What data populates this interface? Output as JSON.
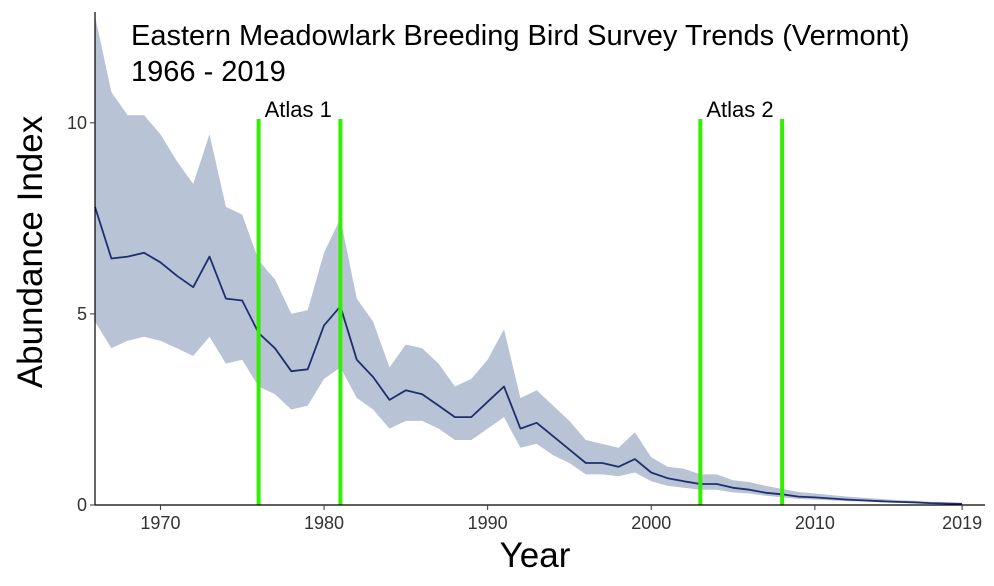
{
  "chart_data": {
    "type": "area",
    "title": "Eastern Meadowlark Breeding Bird Survey Trends (Vermont)",
    "subtitle": "1966 - 2019",
    "xlabel": "Year",
    "ylabel": "Abundance Index",
    "xlim": [
      1966,
      2019
    ],
    "ylim": [
      0,
      12.9
    ],
    "x_ticks": [
      1970,
      1980,
      1990,
      2000,
      2010,
      2019
    ],
    "y_ticks": [
      0,
      5,
      10
    ],
    "grid": false,
    "colors": {
      "line": "#1f2f6e",
      "band": "#b8c3d6",
      "marker": "#33ee00"
    },
    "series": [
      {
        "name": "Abundance Index",
        "x": [
          1966,
          1967,
          1968,
          1969,
          1970,
          1971,
          1972,
          1973,
          1974,
          1975,
          1976,
          1977,
          1978,
          1979,
          1980,
          1981,
          1982,
          1983,
          1984,
          1985,
          1986,
          1987,
          1988,
          1989,
          1990,
          1991,
          1992,
          1993,
          1994,
          1995,
          1996,
          1997,
          1998,
          1999,
          2000,
          2001,
          2002,
          2003,
          2004,
          2005,
          2006,
          2007,
          2008,
          2009,
          2010,
          2011,
          2012,
          2013,
          2014,
          2015,
          2016,
          2017,
          2018,
          2019
        ],
        "values": [
          7.8,
          6.45,
          6.5,
          6.6,
          6.35,
          6.0,
          5.7,
          6.5,
          5.4,
          5.35,
          4.5,
          4.1,
          3.5,
          3.55,
          4.7,
          5.2,
          3.8,
          3.35,
          2.75,
          3.0,
          2.9,
          2.6,
          2.3,
          2.3,
          2.7,
          3.1,
          2.0,
          2.15,
          1.8,
          1.45,
          1.1,
          1.1,
          1.0,
          1.2,
          0.85,
          0.7,
          0.62,
          0.55,
          0.55,
          0.45,
          0.4,
          0.32,
          0.28,
          0.22,
          0.2,
          0.17,
          0.14,
          0.12,
          0.1,
          0.08,
          0.07,
          0.05,
          0.04,
          0.03
        ],
        "upper": [
          12.8,
          10.8,
          10.2,
          10.2,
          9.7,
          9.0,
          8.4,
          9.7,
          7.8,
          7.6,
          6.4,
          5.9,
          5.0,
          5.1,
          6.6,
          7.5,
          5.4,
          4.8,
          3.6,
          4.2,
          4.1,
          3.7,
          3.1,
          3.3,
          3.8,
          4.6,
          2.8,
          3.0,
          2.6,
          2.2,
          1.7,
          1.6,
          1.5,
          1.9,
          1.25,
          1.0,
          0.95,
          0.8,
          0.8,
          0.65,
          0.6,
          0.5,
          0.42,
          0.34,
          0.3,
          0.26,
          0.22,
          0.19,
          0.16,
          0.13,
          0.11,
          0.09,
          0.07,
          0.06
        ],
        "lower": [
          4.8,
          4.1,
          4.3,
          4.4,
          4.3,
          4.1,
          3.9,
          4.4,
          3.7,
          3.8,
          3.1,
          2.9,
          2.5,
          2.6,
          3.3,
          3.6,
          2.8,
          2.5,
          2.0,
          2.2,
          2.2,
          2.0,
          1.7,
          1.7,
          2.0,
          2.3,
          1.5,
          1.6,
          1.3,
          1.1,
          0.8,
          0.8,
          0.75,
          0.85,
          0.62,
          0.5,
          0.45,
          0.4,
          0.4,
          0.33,
          0.3,
          0.24,
          0.2,
          0.16,
          0.14,
          0.12,
          0.1,
          0.09,
          0.07,
          0.06,
          0.05,
          0.04,
          0.03,
          0.02
        ]
      }
    ],
    "annotations": [
      {
        "label": "Atlas 1",
        "x_start": 1976,
        "x_end": 1981
      },
      {
        "label": "Atlas 2",
        "x_start": 2003,
        "x_end": 2008
      }
    ]
  }
}
